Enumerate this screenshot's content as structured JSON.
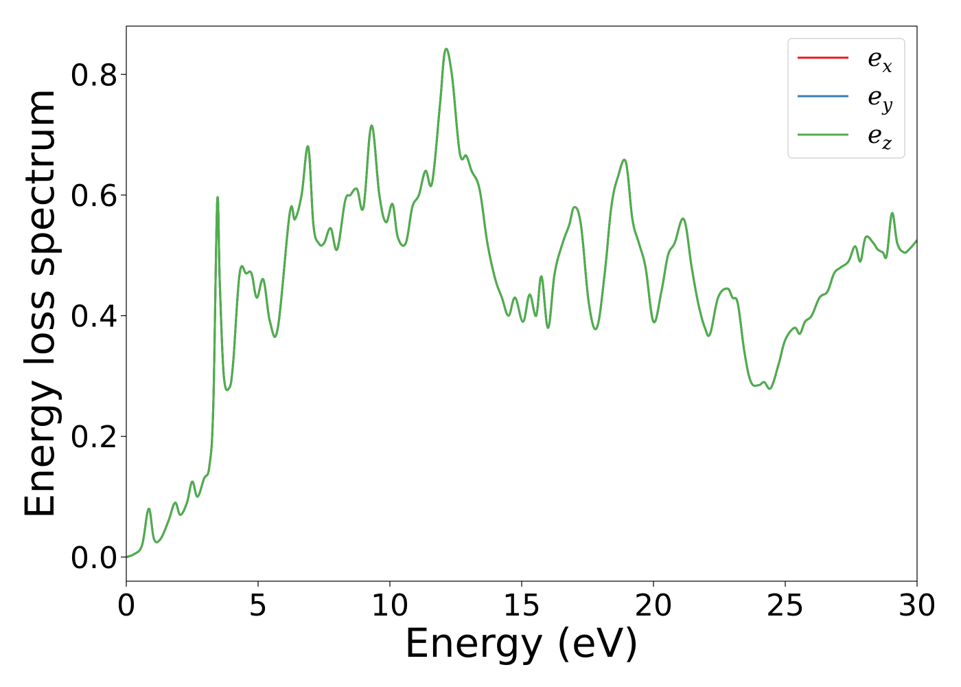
{
  "chart_data": {
    "type": "line",
    "xlabel": "Energy (eV)",
    "ylabel": "Energy loss spectrum",
    "xlim": [
      0,
      30
    ],
    "ylim": [
      -0.04,
      0.88
    ],
    "xticks": [
      0,
      5,
      10,
      15,
      20,
      25,
      30
    ],
    "xtick_labels": [
      "0",
      "5",
      "10",
      "15",
      "20",
      "25",
      "30"
    ],
    "yticks": [
      0.0,
      0.2,
      0.4,
      0.6,
      0.8
    ],
    "ytick_labels": [
      "0.0",
      "0.2",
      "0.4",
      "0.6",
      "0.8"
    ],
    "grid": false,
    "legend_position": "top-right",
    "x": [
      0,
      0.3,
      0.6,
      0.85,
      1.05,
      1.3,
      1.6,
      1.85,
      2.05,
      2.3,
      2.5,
      2.7,
      2.95,
      3.15,
      3.3,
      3.45,
      3.55,
      3.7,
      3.9,
      4.05,
      4.3,
      4.55,
      4.75,
      4.95,
      5.2,
      5.45,
      5.75,
      6.2,
      6.4,
      6.65,
      6.9,
      7.1,
      7.3,
      7.5,
      7.75,
      8.0,
      8.3,
      8.5,
      8.75,
      9.0,
      9.3,
      9.6,
      9.85,
      10.1,
      10.3,
      10.6,
      10.85,
      11.1,
      11.35,
      11.6,
      11.9,
      12.1,
      12.35,
      12.65,
      12.9,
      13.1,
      13.4,
      13.7,
      14.0,
      14.25,
      14.5,
      14.75,
      15.05,
      15.3,
      15.55,
      15.75,
      16.0,
      16.25,
      16.55,
      16.8,
      17.0,
      17.25,
      17.55,
      17.85,
      18.15,
      18.4,
      18.65,
      18.95,
      19.2,
      19.45,
      19.7,
      20.0,
      20.3,
      20.55,
      20.8,
      21.15,
      21.45,
      21.7,
      21.95,
      22.15,
      22.45,
      22.8,
      23.0,
      23.2,
      23.45,
      23.7,
      24.0,
      24.2,
      24.45,
      24.75,
      25.0,
      25.35,
      25.55,
      25.75,
      26.0,
      26.3,
      26.6,
      26.85,
      27.1,
      27.4,
      27.65,
      27.85,
      28.05,
      28.35,
      28.5,
      28.7,
      28.85,
      29.05,
      29.25,
      29.5,
      29.7,
      30.0
    ],
    "series": [
      {
        "name": "e_x",
        "color": "#e41a1c",
        "values": [
          0.0,
          0.005,
          0.02,
          0.08,
          0.03,
          0.03,
          0.06,
          0.09,
          0.07,
          0.09,
          0.125,
          0.1,
          0.13,
          0.15,
          0.25,
          0.59,
          0.45,
          0.3,
          0.28,
          0.32,
          0.47,
          0.47,
          0.47,
          0.43,
          0.46,
          0.39,
          0.38,
          0.57,
          0.56,
          0.6,
          0.68,
          0.55,
          0.52,
          0.52,
          0.545,
          0.51,
          0.59,
          0.6,
          0.61,
          0.58,
          0.715,
          0.6,
          0.555,
          0.585,
          0.53,
          0.52,
          0.58,
          0.6,
          0.64,
          0.62,
          0.75,
          0.84,
          0.8,
          0.67,
          0.665,
          0.64,
          0.61,
          0.52,
          0.46,
          0.43,
          0.4,
          0.43,
          0.39,
          0.435,
          0.4,
          0.465,
          0.38,
          0.47,
          0.52,
          0.55,
          0.58,
          0.55,
          0.42,
          0.38,
          0.47,
          0.58,
          0.63,
          0.655,
          0.56,
          0.52,
          0.48,
          0.39,
          0.44,
          0.5,
          0.52,
          0.56,
          0.48,
          0.42,
          0.38,
          0.37,
          0.43,
          0.445,
          0.43,
          0.42,
          0.34,
          0.29,
          0.285,
          0.29,
          0.28,
          0.32,
          0.36,
          0.38,
          0.37,
          0.39,
          0.4,
          0.43,
          0.44,
          0.47,
          0.48,
          0.49,
          0.515,
          0.49,
          0.53,
          0.52,
          0.51,
          0.505,
          0.5,
          0.57,
          0.52,
          0.505,
          0.51,
          0.525
        ]
      },
      {
        "name": "e_y",
        "color": "#377eb8",
        "values": [
          0.0,
          0.005,
          0.02,
          0.08,
          0.03,
          0.03,
          0.06,
          0.09,
          0.07,
          0.09,
          0.125,
          0.1,
          0.13,
          0.15,
          0.25,
          0.59,
          0.45,
          0.3,
          0.28,
          0.32,
          0.47,
          0.47,
          0.47,
          0.43,
          0.46,
          0.39,
          0.38,
          0.57,
          0.56,
          0.6,
          0.68,
          0.55,
          0.52,
          0.52,
          0.545,
          0.51,
          0.59,
          0.6,
          0.61,
          0.58,
          0.715,
          0.6,
          0.555,
          0.585,
          0.53,
          0.52,
          0.58,
          0.6,
          0.64,
          0.62,
          0.75,
          0.84,
          0.8,
          0.67,
          0.665,
          0.64,
          0.61,
          0.52,
          0.46,
          0.43,
          0.4,
          0.43,
          0.39,
          0.435,
          0.4,
          0.465,
          0.38,
          0.47,
          0.52,
          0.55,
          0.58,
          0.55,
          0.42,
          0.38,
          0.47,
          0.58,
          0.63,
          0.655,
          0.56,
          0.52,
          0.48,
          0.39,
          0.44,
          0.5,
          0.52,
          0.56,
          0.48,
          0.42,
          0.38,
          0.37,
          0.43,
          0.445,
          0.43,
          0.42,
          0.34,
          0.29,
          0.285,
          0.29,
          0.28,
          0.32,
          0.36,
          0.38,
          0.37,
          0.39,
          0.4,
          0.43,
          0.44,
          0.47,
          0.48,
          0.49,
          0.515,
          0.49,
          0.53,
          0.52,
          0.51,
          0.505,
          0.5,
          0.57,
          0.52,
          0.505,
          0.51,
          0.525
        ]
      },
      {
        "name": "e_z",
        "color": "#4daf4a",
        "values": [
          0.0,
          0.005,
          0.02,
          0.08,
          0.03,
          0.03,
          0.06,
          0.09,
          0.07,
          0.09,
          0.125,
          0.1,
          0.13,
          0.15,
          0.25,
          0.59,
          0.45,
          0.3,
          0.28,
          0.32,
          0.47,
          0.47,
          0.47,
          0.43,
          0.46,
          0.39,
          0.38,
          0.57,
          0.56,
          0.6,
          0.68,
          0.55,
          0.52,
          0.52,
          0.545,
          0.51,
          0.59,
          0.6,
          0.61,
          0.58,
          0.715,
          0.6,
          0.555,
          0.585,
          0.53,
          0.52,
          0.58,
          0.6,
          0.64,
          0.62,
          0.75,
          0.84,
          0.8,
          0.67,
          0.665,
          0.64,
          0.61,
          0.52,
          0.46,
          0.43,
          0.4,
          0.43,
          0.39,
          0.435,
          0.4,
          0.465,
          0.38,
          0.47,
          0.52,
          0.55,
          0.58,
          0.55,
          0.42,
          0.38,
          0.47,
          0.58,
          0.63,
          0.655,
          0.56,
          0.52,
          0.48,
          0.39,
          0.44,
          0.5,
          0.52,
          0.56,
          0.48,
          0.42,
          0.38,
          0.37,
          0.43,
          0.445,
          0.43,
          0.42,
          0.34,
          0.29,
          0.285,
          0.29,
          0.28,
          0.32,
          0.36,
          0.38,
          0.37,
          0.39,
          0.4,
          0.43,
          0.44,
          0.47,
          0.48,
          0.49,
          0.515,
          0.49,
          0.53,
          0.52,
          0.51,
          0.505,
          0.5,
          0.57,
          0.52,
          0.505,
          0.51,
          0.525
        ]
      }
    ],
    "legend": [
      {
        "base": "e",
        "sub": "x",
        "color": "#e41a1c"
      },
      {
        "base": "e",
        "sub": "y",
        "color": "#377eb8"
      },
      {
        "base": "e",
        "sub": "z",
        "color": "#4daf4a"
      }
    ]
  }
}
